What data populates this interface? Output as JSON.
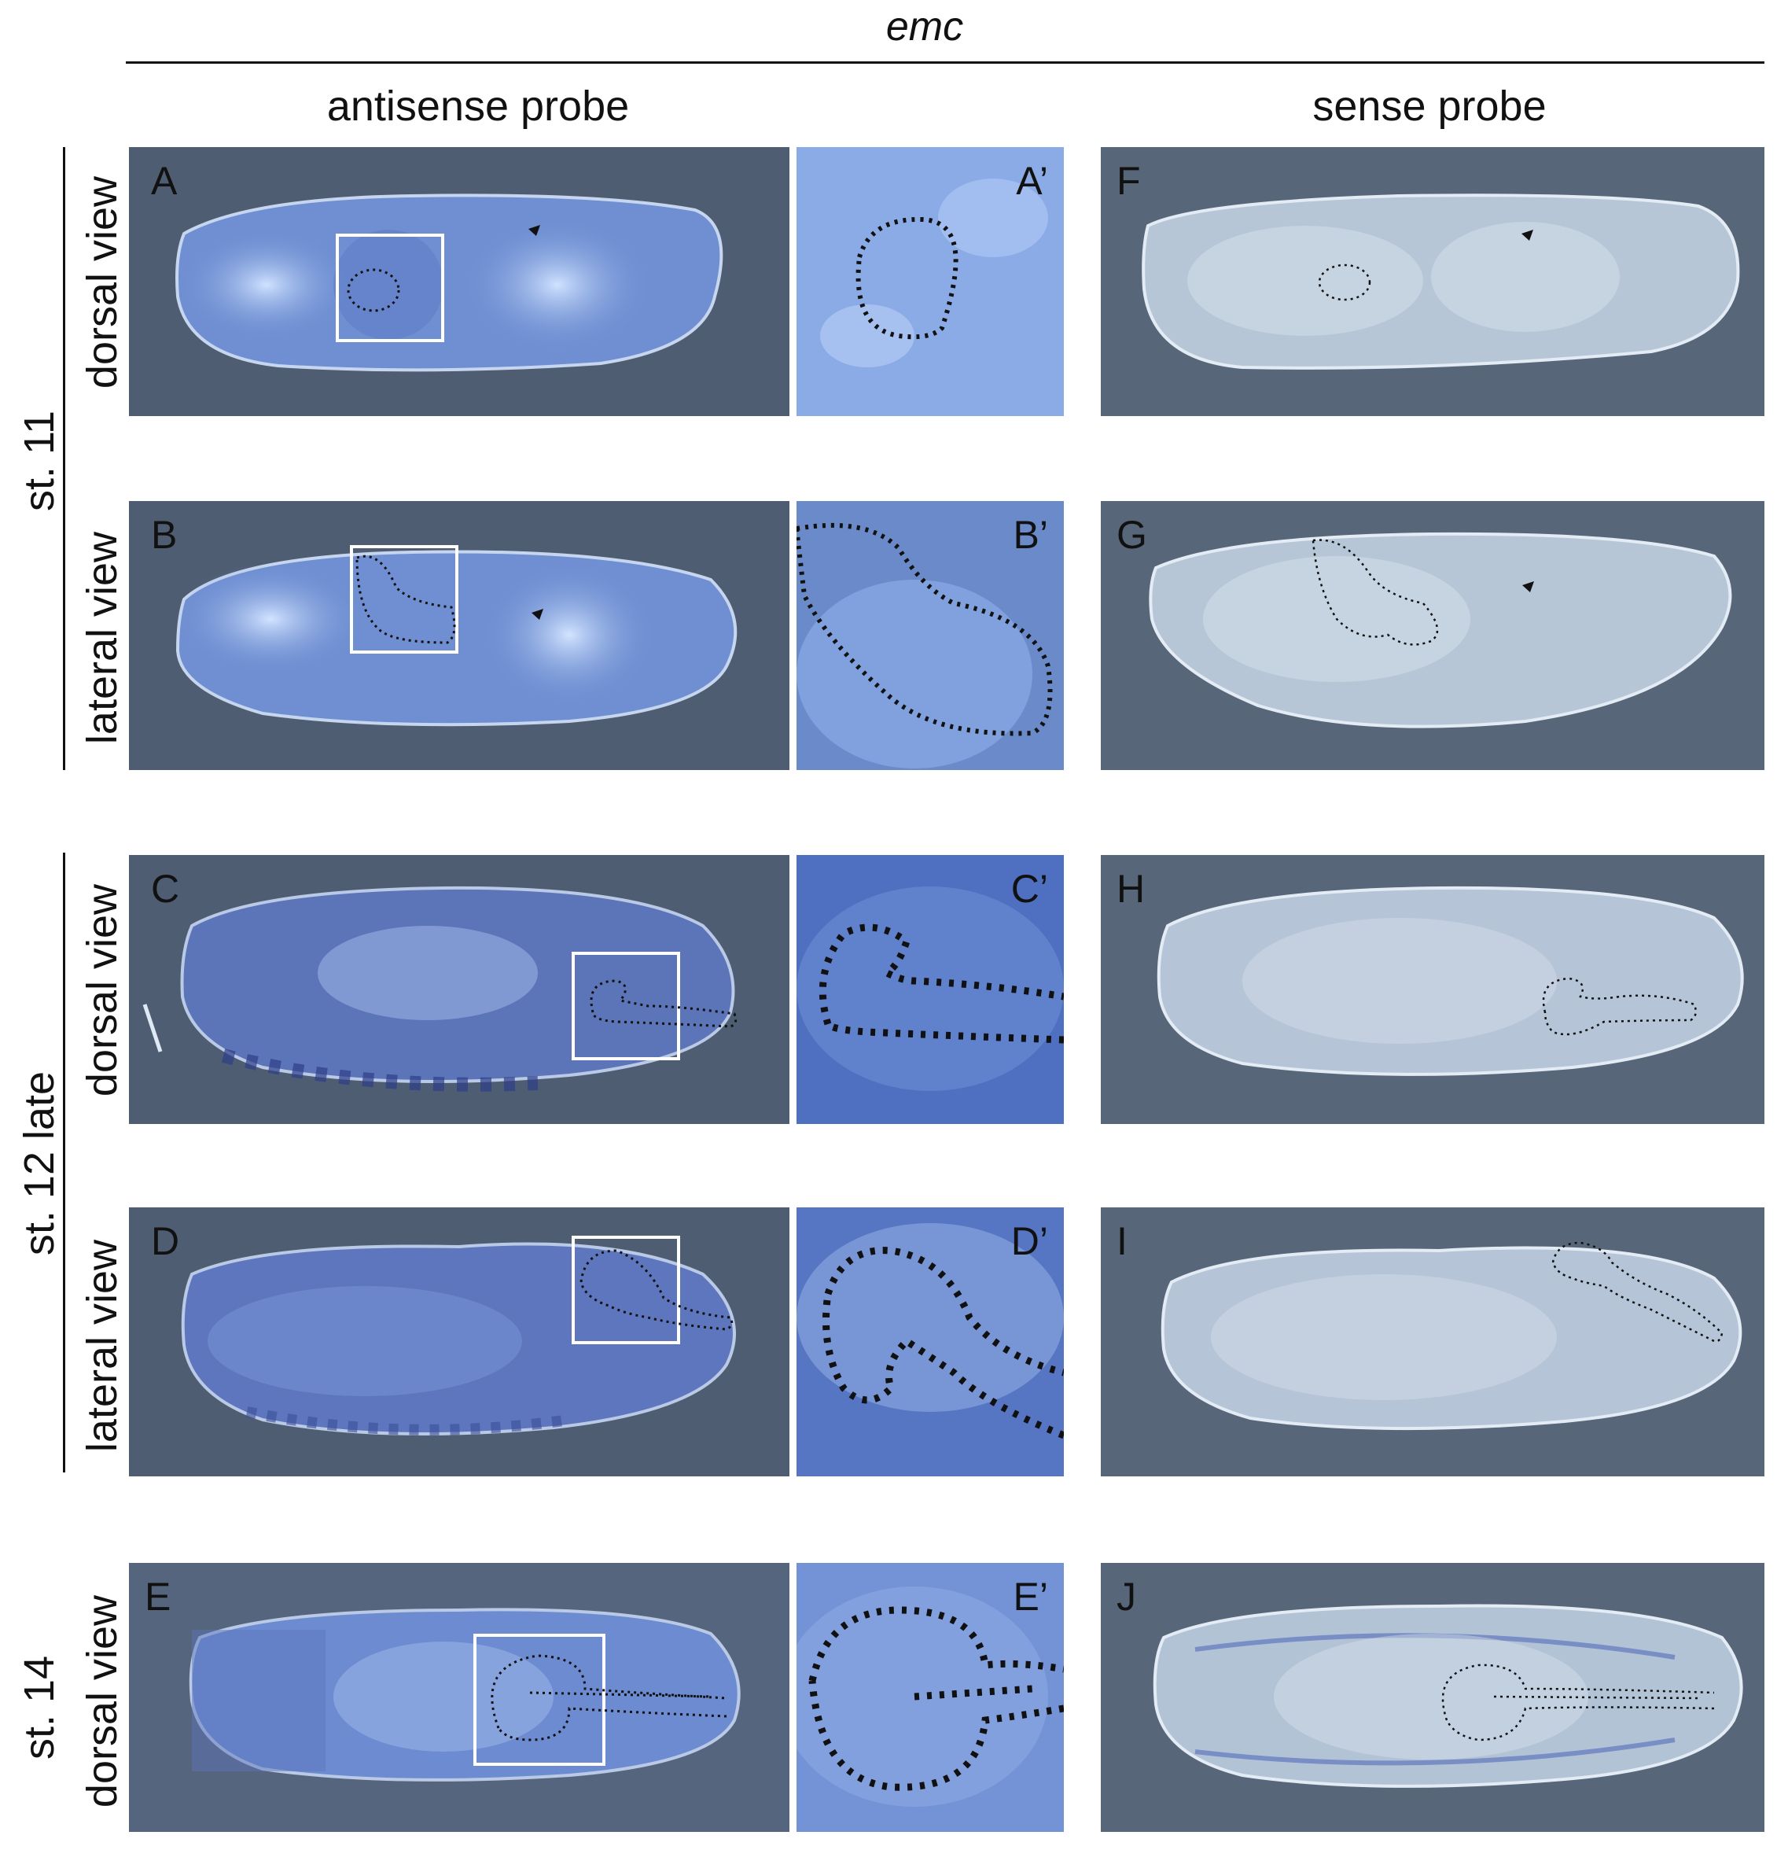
{
  "figure": {
    "title": "emc",
    "columns": {
      "antisense": "antisense probe",
      "sense": "sense probe"
    },
    "stages": {
      "st11": "st. 11",
      "st12": "st. 12 late",
      "st14": "st. 14"
    },
    "views": {
      "dorsal": "dorsal view",
      "lateral": "lateral view"
    },
    "panels": {
      "A": "A",
      "A_prime": "A’",
      "F": "F",
      "B": "B",
      "B_prime": "B’",
      "G": "G",
      "C": "C",
      "C_prime": "C’",
      "H": "H",
      "D": "D",
      "D_prime": "D’",
      "I": "I",
      "E": "E",
      "E_prime": "E’",
      "J": "J"
    }
  },
  "colors": {
    "antisense_background": "#4f5d73",
    "antisense_embryo": "#6f8fd2",
    "sense_background": "#586679",
    "sense_embryo": "#b7c6d6"
  }
}
